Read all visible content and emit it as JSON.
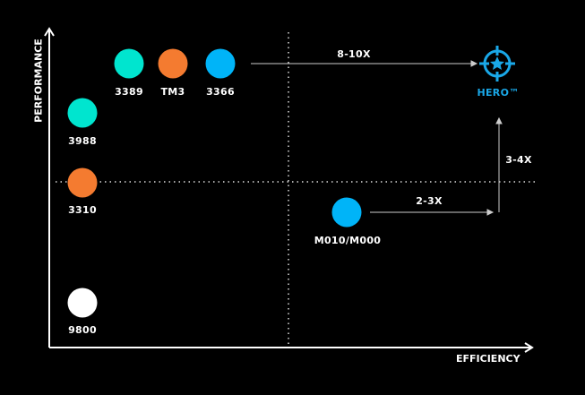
{
  "axes": {
    "y_label": "PERFORMANCE",
    "x_label": "EFFICIENCY"
  },
  "colors": {
    "teal": "#00E5CF",
    "orange": "#F47B30",
    "blue": "#00B4F8",
    "white": "#FFFFFF",
    "hero": "#1AA8E8"
  },
  "sensors": [
    {
      "label": "3389",
      "color": "#00E5CF"
    },
    {
      "label": "TM3",
      "color": "#F47B30"
    },
    {
      "label": "3366",
      "color": "#00B4F8"
    },
    {
      "label": "3988",
      "color": "#00E5CF"
    },
    {
      "label": "3310",
      "color": "#F47B30"
    },
    {
      "label": "M010/M000",
      "color": "#00B4F8"
    },
    {
      "label": "9800",
      "color": "#FFFFFF"
    }
  ],
  "hero": {
    "label": "HERO™",
    "icon": "crosshair-star-icon"
  },
  "arrows": [
    {
      "label": "8-10X"
    },
    {
      "label": "2-3X"
    },
    {
      "label": "3-4X"
    }
  ]
}
